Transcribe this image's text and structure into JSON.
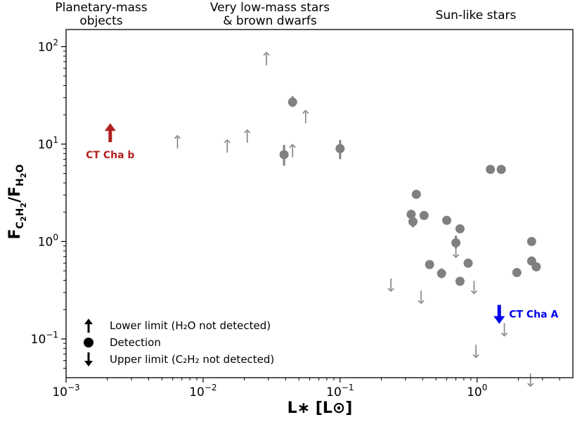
{
  "chart_data": {
    "type": "scatter",
    "xscale": "log",
    "yscale": "log",
    "xlim": [
      0.001,
      5
    ],
    "ylim": [
      0.04,
      150
    ],
    "x_ticks": [
      {
        "value": 0.001,
        "label_base": "10",
        "label_exp": "−3"
      },
      {
        "value": 0.01,
        "label_base": "10",
        "label_exp": "−2"
      },
      {
        "value": 0.1,
        "label_base": "10",
        "label_exp": "−1"
      },
      {
        "value": 1,
        "label_base": "10",
        "label_exp": "0"
      }
    ],
    "y_ticks": [
      {
        "value": 0.1,
        "label_base": "10",
        "label_exp": "−1"
      },
      {
        "value": 1,
        "label_base": "10",
        "label_exp": "0"
      },
      {
        "value": 10,
        "label_base": "10",
        "label_exp": "1"
      },
      {
        "value": 100,
        "label_base": "10",
        "label_exp": "2"
      }
    ],
    "regions": [
      {
        "label": "Planetary-mass\nobjects",
        "x": 0.0021
      },
      {
        "label": "Very low-mass stars\n& brown dwarfs",
        "x": 0.033
      },
      {
        "label": "Sun-like stars",
        "x": 1.0
      }
    ],
    "detections": [
      {
        "x": 0.045,
        "y": 27,
        "err": [
          24,
          31
        ]
      },
      {
        "x": 0.039,
        "y": 7.8,
        "err": [
          6.0,
          9.8
        ]
      },
      {
        "x": 0.1,
        "y": 9.0,
        "err": [
          7.0,
          11.0
        ]
      },
      {
        "x": 0.36,
        "y": 3.05,
        "err": null
      },
      {
        "x": 0.33,
        "y": 1.9,
        "err": null
      },
      {
        "x": 0.34,
        "y": 1.6,
        "err": [
          1.4,
          1.85
        ]
      },
      {
        "x": 0.41,
        "y": 1.85,
        "err": null
      },
      {
        "x": 0.6,
        "y": 1.65,
        "err": null
      },
      {
        "x": 0.75,
        "y": 1.35,
        "err": null
      },
      {
        "x": 0.7,
        "y": 0.97,
        "err": [
          0.85,
          1.15
        ]
      },
      {
        "x": 0.45,
        "y": 0.58,
        "err": null
      },
      {
        "x": 0.55,
        "y": 0.47,
        "err": [
          0.42,
          0.53
        ]
      },
      {
        "x": 0.86,
        "y": 0.6,
        "err": null
      },
      {
        "x": 0.75,
        "y": 0.39,
        "err": null
      },
      {
        "x": 1.25,
        "y": 5.5,
        "err": null
      },
      {
        "x": 1.5,
        "y": 5.5,
        "err": null
      },
      {
        "x": 2.5,
        "y": 1.0,
        "err": null
      },
      {
        "x": 2.5,
        "y": 0.63,
        "err": null
      },
      {
        "x": 2.7,
        "y": 0.55,
        "err": null
      },
      {
        "x": 1.95,
        "y": 0.48,
        "err": null
      }
    ],
    "lower_limits": [
      {
        "x": 0.0065,
        "y": 10.5
      },
      {
        "x": 0.015,
        "y": 9.5
      },
      {
        "x": 0.021,
        "y": 12.0
      },
      {
        "x": 0.029,
        "y": 75
      },
      {
        "x": 0.045,
        "y": 8.5
      },
      {
        "x": 0.056,
        "y": 19
      }
    ],
    "upper_limits": [
      {
        "x": 0.7,
        "y": 0.8
      },
      {
        "x": 0.235,
        "y": 0.36
      },
      {
        "x": 0.39,
        "y": 0.27
      },
      {
        "x": 0.95,
        "y": 0.34
      },
      {
        "x": 1.58,
        "y": 0.125
      },
      {
        "x": 0.98,
        "y": 0.075
      },
      {
        "x": 2.45,
        "y": 0.038
      }
    ],
    "special": [
      {
        "label": "CT Cha b",
        "x": 0.0021,
        "y": 13,
        "kind": "lower",
        "color": "#b22222"
      },
      {
        "label": "CT Cha A",
        "x": 1.45,
        "y": 0.18,
        "kind": "upper",
        "color": "#0000ee"
      }
    ],
    "point_color": "#808080",
    "legend": {
      "placement": "lower-left",
      "entries": [
        {
          "symbol": "up-arrow",
          "text": "Lower limit (H₂O not detected)"
        },
        {
          "symbol": "dot",
          "text": "Detection"
        },
        {
          "symbol": "down-arrow",
          "text": "Upper limit (C₂H₂ not detected)"
        }
      ]
    },
    "xlabel": "L∗ [L⊙]",
    "ylabel": "FC₂H₂/FH₂O"
  }
}
